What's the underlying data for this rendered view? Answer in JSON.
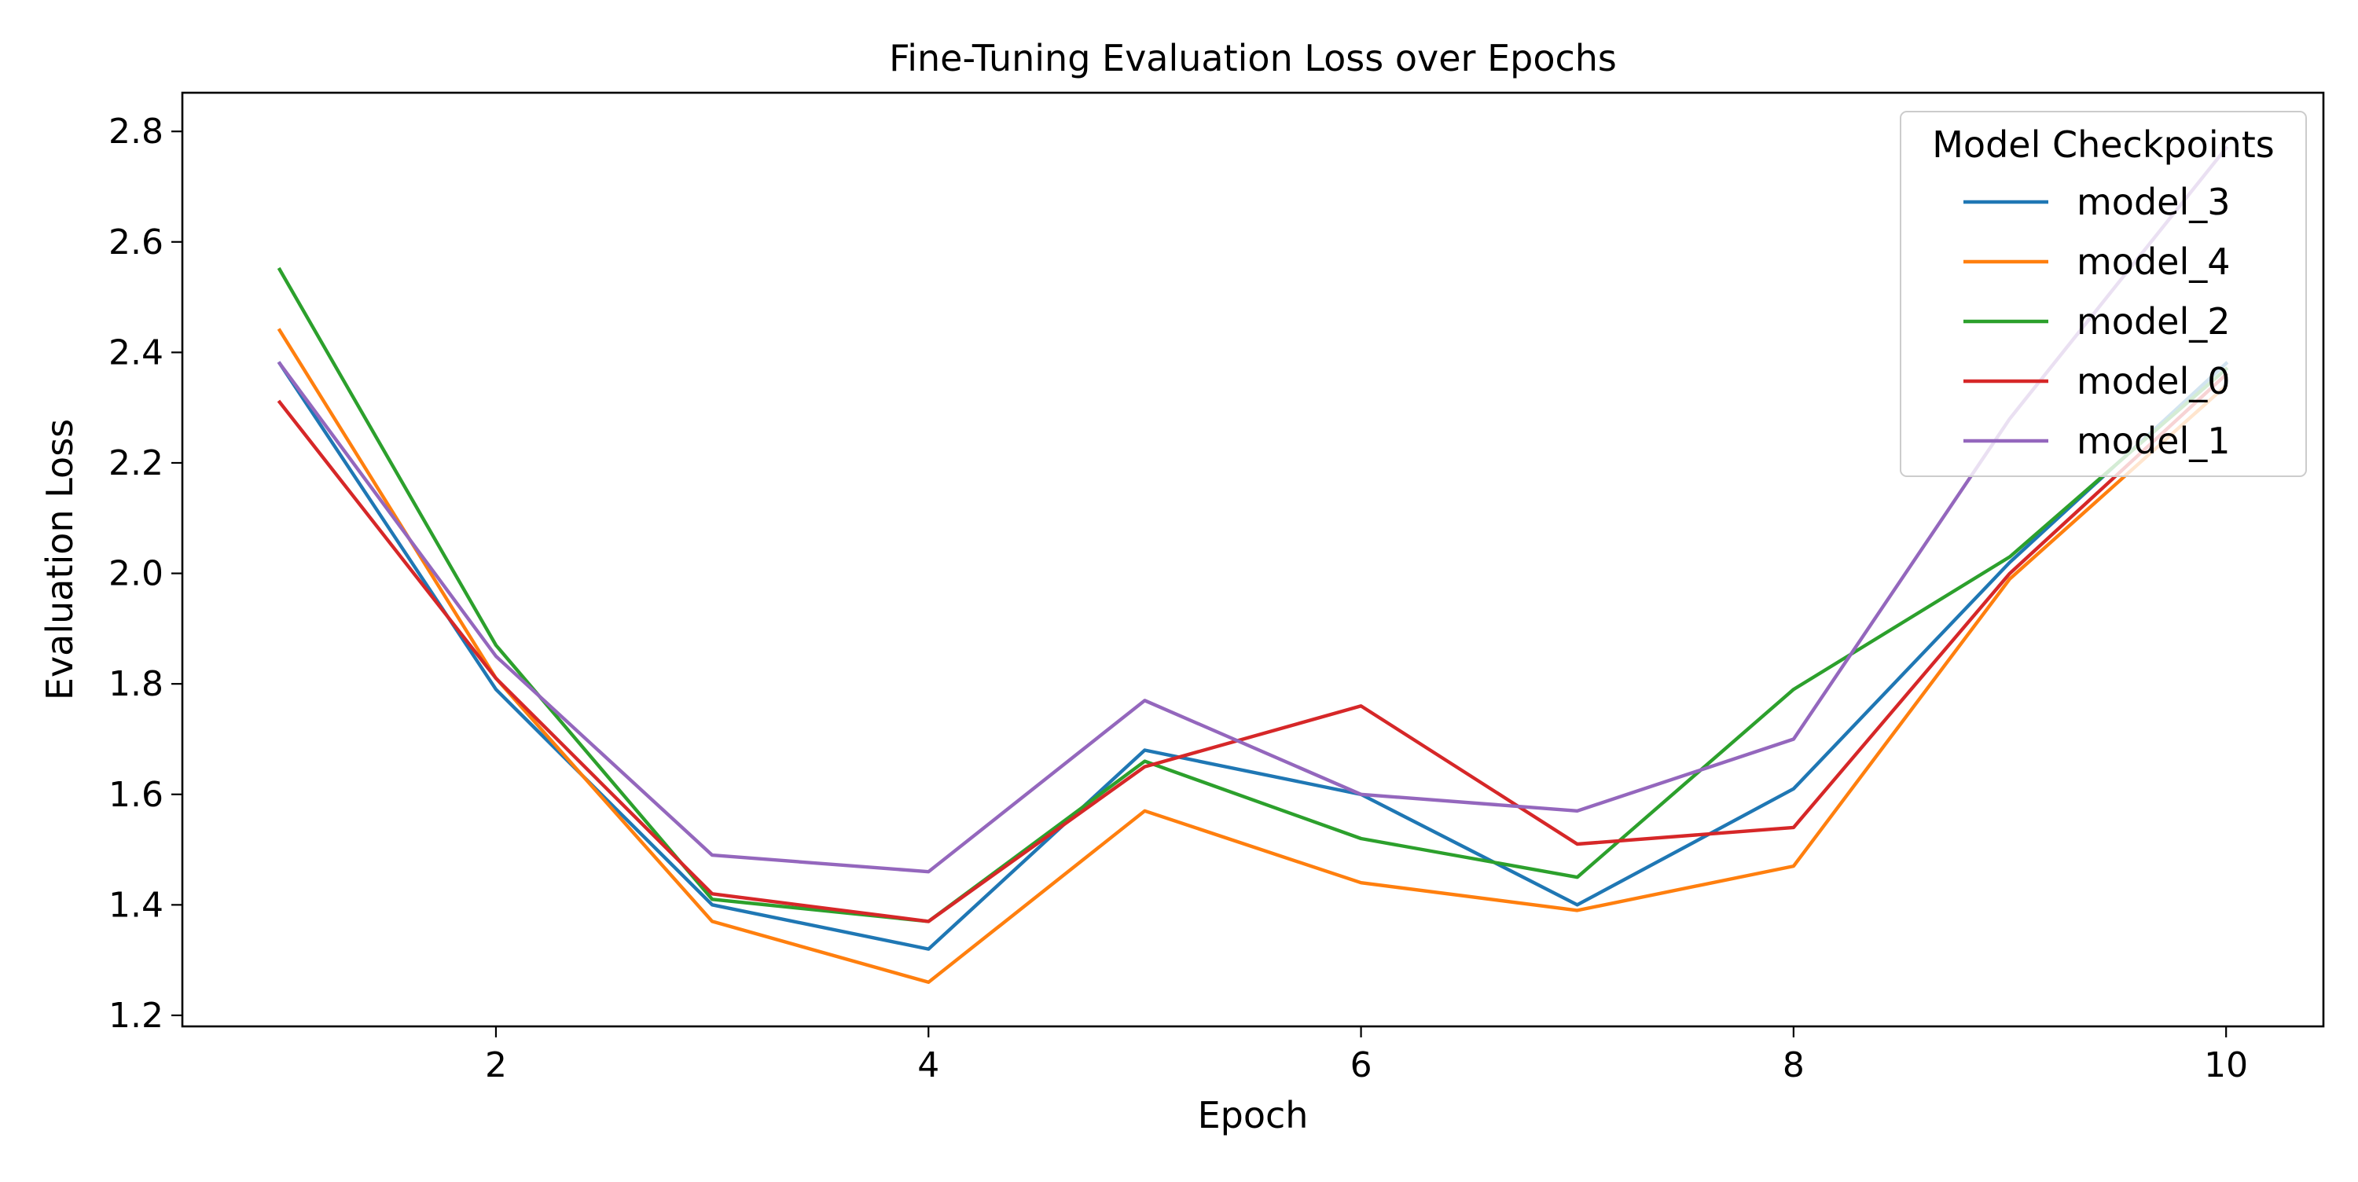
{
  "chart_data": {
    "type": "line",
    "title": "Fine-Tuning Evaluation Loss over Epochs",
    "xlabel": "Epoch",
    "ylabel": "Evaluation Loss",
    "x": [
      1,
      2,
      3,
      4,
      5,
      6,
      7,
      8,
      9,
      10
    ],
    "xlim": [
      0.55,
      10.45
    ],
    "ylim": [
      1.18,
      2.87
    ],
    "xticks": [
      2,
      4,
      6,
      8,
      10
    ],
    "yticks": [
      1.2,
      1.4,
      1.6,
      1.8,
      2.0,
      2.2,
      2.4,
      2.6,
      2.8
    ],
    "xtick_labels": [
      "2",
      "4",
      "6",
      "8",
      "10"
    ],
    "ytick_labels": [
      "1.2",
      "1.4",
      "1.6",
      "1.8",
      "2.0",
      "2.2",
      "2.4",
      "2.6",
      "2.8"
    ],
    "grid": false,
    "legend": {
      "title": "Model Checkpoints",
      "placement": "top-right"
    },
    "series": [
      {
        "name": "model_3",
        "color": "#1f77b4",
        "values": [
          2.38,
          1.79,
          1.4,
          1.32,
          1.68,
          1.6,
          1.4,
          1.61,
          2.02,
          2.38
        ]
      },
      {
        "name": "model_4",
        "color": "#ff7f0e",
        "values": [
          2.44,
          1.81,
          1.37,
          1.26,
          1.57,
          1.44,
          1.39,
          1.47,
          1.99,
          2.34
        ]
      },
      {
        "name": "model_2",
        "color": "#2ca02c",
        "values": [
          2.55,
          1.87,
          1.41,
          1.37,
          1.66,
          1.52,
          1.45,
          1.79,
          2.03,
          2.37
        ]
      },
      {
        "name": "model_0",
        "color": "#d62728",
        "values": [
          2.31,
          1.81,
          1.42,
          1.37,
          1.65,
          1.76,
          1.51,
          1.54,
          2.0,
          2.36
        ]
      },
      {
        "name": "model_1",
        "color": "#9467bd",
        "values": [
          2.38,
          1.85,
          1.49,
          1.46,
          1.77,
          1.6,
          1.57,
          1.7,
          2.28,
          2.77
        ]
      }
    ]
  }
}
